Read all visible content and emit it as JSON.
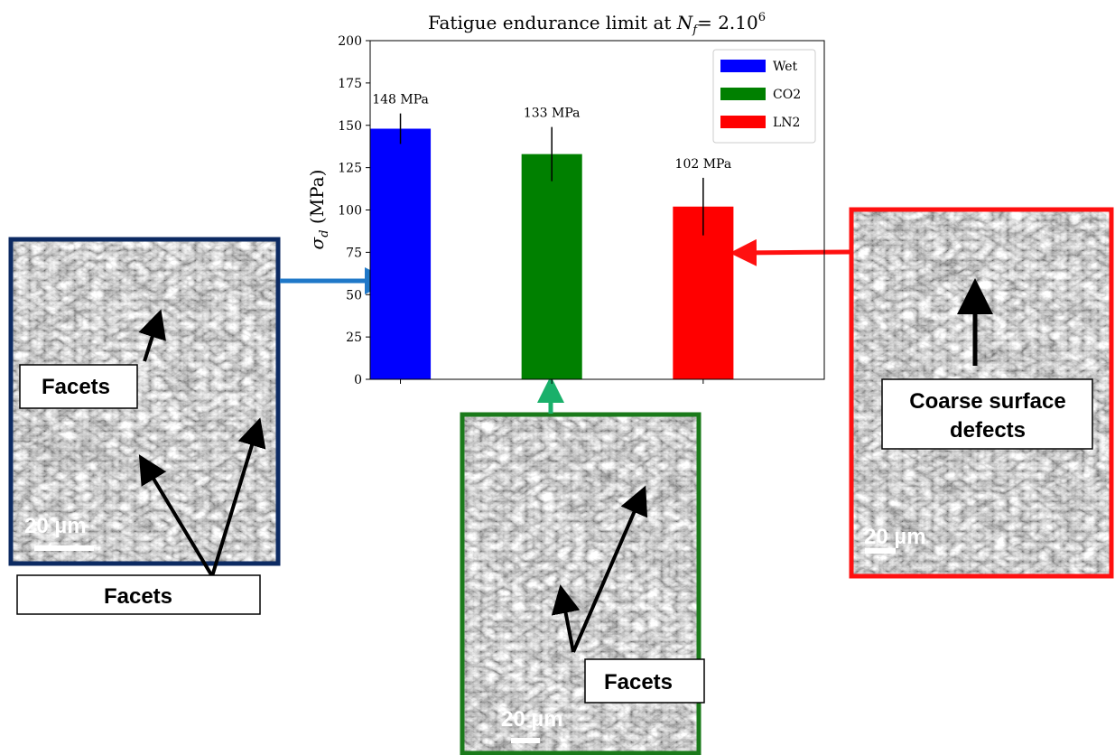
{
  "chart_data": {
    "type": "bar",
    "title": [
      "Fatigue endurance limit at ",
      "N",
      "f",
      "= 2.10",
      "6"
    ],
    "ylabel": [
      "σ",
      "d",
      " (MPa)"
    ],
    "categories": [
      null,
      null,
      null
    ],
    "series": [
      {
        "name": "Wet",
        "color": "#0000ff",
        "values": [
          148,
          null,
          null
        ],
        "errors": [
          9,
          null,
          null
        ],
        "value_labels": [
          "148 MPa",
          null,
          null
        ]
      },
      {
        "name": "CO2",
        "color": "#008000",
        "values": [
          null,
          133,
          null
        ],
        "errors": [
          null,
          16,
          null
        ],
        "value_labels": [
          null,
          "133 MPa",
          null
        ]
      },
      {
        "name": "LN2",
        "color": "#ff0000",
        "values": [
          null,
          null,
          102
        ],
        "errors": [
          null,
          null,
          17
        ],
        "value_labels": [
          null,
          null,
          "102 MPa"
        ]
      }
    ],
    "ylim": [
      0,
      200
    ],
    "yticks": [
      0,
      25,
      50,
      75,
      100,
      125,
      150,
      175,
      200
    ],
    "legend": "upper right",
    "grid": false
  },
  "panels": [
    {
      "labels": [
        "Facets",
        "Facets"
      ],
      "scale": "20 µm"
    },
    {
      "labels": [
        "Facets"
      ],
      "scale": "20 µm"
    },
    {
      "labels": [
        "Coarse surface",
        "defects"
      ],
      "scale": "20 µm"
    }
  ]
}
